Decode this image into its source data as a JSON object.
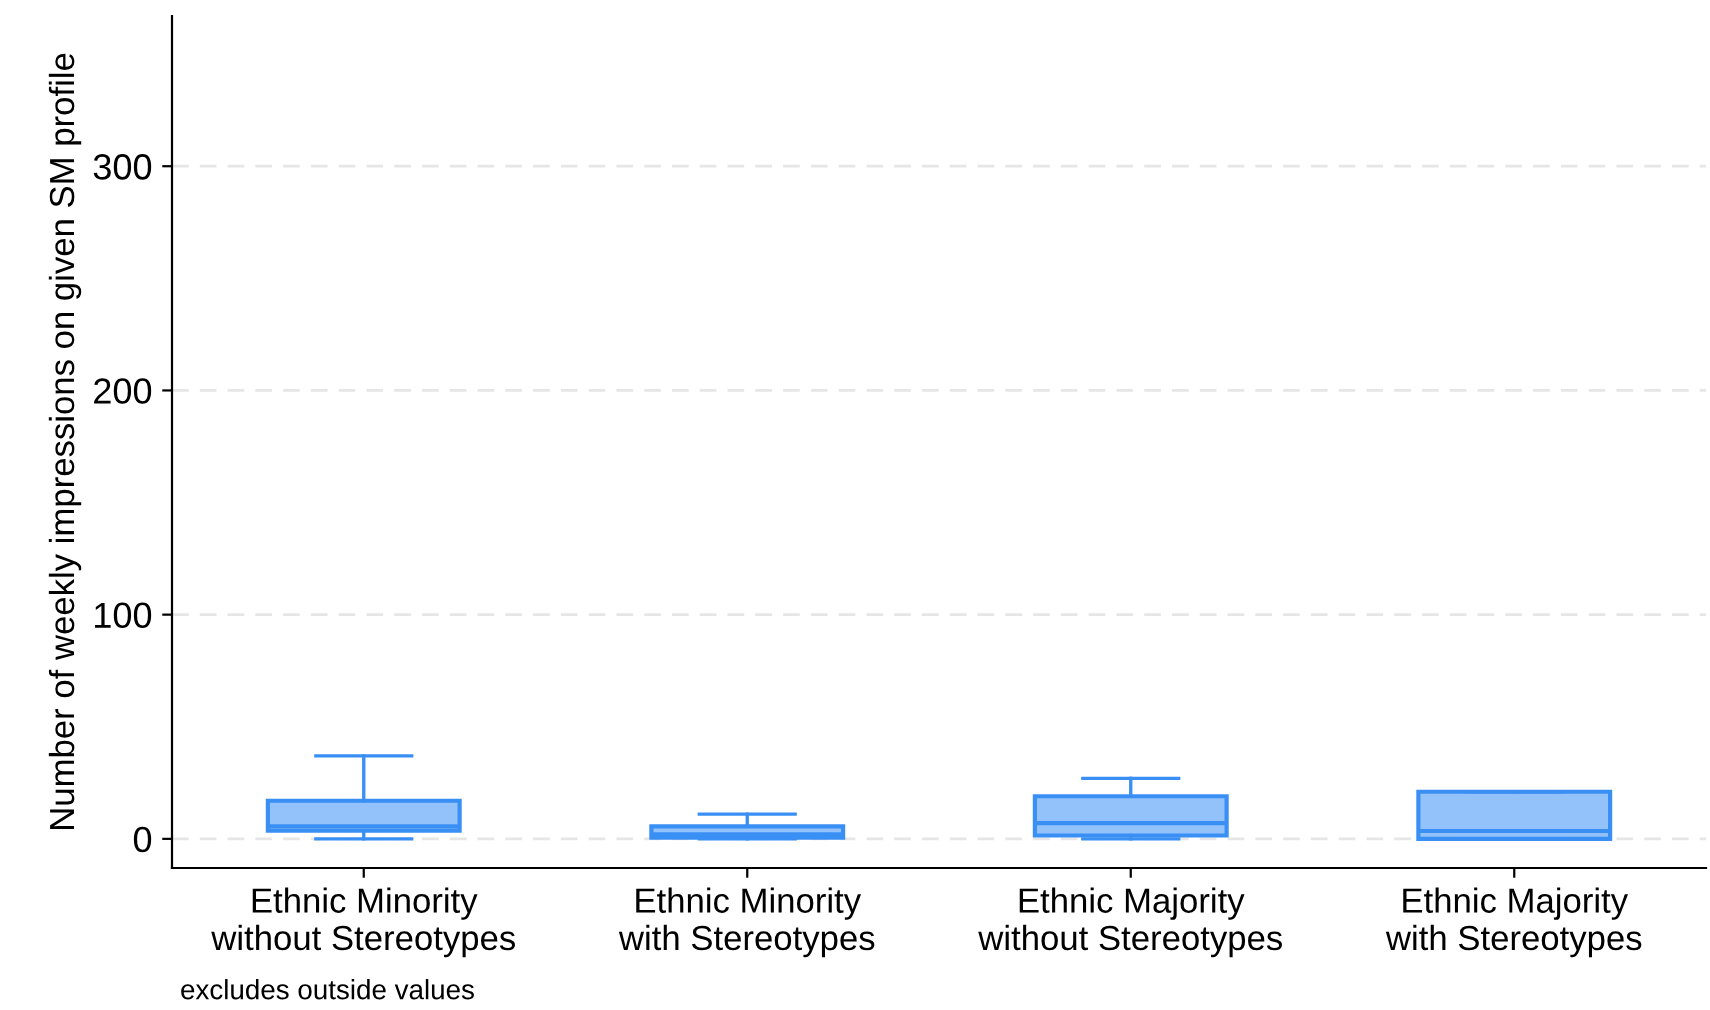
{
  "chart_data": {
    "type": "box",
    "ylabel": "Number of weekly impressions on given SM profile",
    "categories": [
      "Ethnic Minority\nwithout Stereotypes",
      "Ethnic Minority\nwith Stereotypes",
      "Ethnic Majority\nwithout Stereotypes",
      "Ethnic Majority\nwith Stereotypes"
    ],
    "series": [
      {
        "color": "#3a8ff5",
        "boxes": [
          {
            "low": 0,
            "q1": 3.6,
            "median": 5.6,
            "q3": 17,
            "high": 37
          },
          {
            "low": 0,
            "q1": 0.5,
            "median": 2,
            "q3": 5.6,
            "high": 11
          },
          {
            "low": 0,
            "q1": 1.5,
            "median": 7,
            "q3": 19,
            "high": 27
          },
          {
            "low": 0,
            "q1": 0,
            "median": 3.5,
            "q3": 21,
            "high": 21
          }
        ]
      }
    ],
    "ylim": [
      -13,
      367
    ],
    "yticks": [
      0,
      100,
      200,
      300
    ],
    "grid": "y",
    "annotations": [
      "excludes outside values"
    ]
  }
}
